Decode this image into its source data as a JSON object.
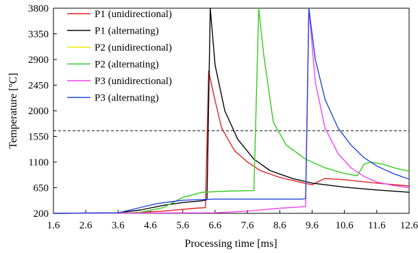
{
  "chart_data": {
    "type": "line",
    "xlabel": "Processing time [ms]",
    "ylabel": "Temperature [ºC]",
    "xlim": [
      1.6,
      12.6
    ],
    "ylim": [
      200,
      3800
    ],
    "xticks": [
      "1.6",
      "2.6",
      "3.6",
      "4.6",
      "5.6",
      "6.6",
      "7.6",
      "8.6",
      "9.6",
      "10.6",
      "11.6",
      "12.6"
    ],
    "yticks": [
      "200",
      "650",
      "1100",
      "1550",
      "2000",
      "2450",
      "2900",
      "3350",
      "3800"
    ],
    "grid": false,
    "legend_position": "top-left",
    "reference_line": {
      "y": 1650,
      "style": "dashed"
    },
    "series": [
      {
        "name": "P1 (unidirectional)",
        "color": "#e02020",
        "points": [
          [
            1.6,
            200
          ],
          [
            4.0,
            210
          ],
          [
            5.0,
            240
          ],
          [
            6.0,
            290
          ],
          [
            6.3,
            300
          ],
          [
            6.4,
            2700
          ],
          [
            6.55,
            2300
          ],
          [
            6.8,
            1700
          ],
          [
            7.2,
            1300
          ],
          [
            7.6,
            1100
          ],
          [
            8.0,
            950
          ],
          [
            8.6,
            830
          ],
          [
            9.2,
            750
          ],
          [
            9.6,
            700
          ],
          [
            9.8,
            760
          ],
          [
            10.0,
            810
          ],
          [
            10.6,
            790
          ],
          [
            11.6,
            730
          ],
          [
            12.6,
            680
          ]
        ]
      },
      {
        "name": "P1 (alternating)",
        "color": "#000000",
        "points": [
          [
            1.6,
            200
          ],
          [
            3.6,
            210
          ],
          [
            4.3,
            260
          ],
          [
            5.0,
            340
          ],
          [
            5.6,
            390
          ],
          [
            6.2,
            420
          ],
          [
            6.35,
            440
          ],
          [
            6.45,
            3800
          ],
          [
            6.6,
            2800
          ],
          [
            6.9,
            2000
          ],
          [
            7.3,
            1500
          ],
          [
            7.8,
            1150
          ],
          [
            8.3,
            950
          ],
          [
            9.0,
            810
          ],
          [
            9.6,
            730
          ],
          [
            10.6,
            660
          ],
          [
            11.6,
            610
          ],
          [
            12.6,
            570
          ]
        ]
      },
      {
        "name": "P2 (unidirectional)",
        "color": "#e8e800",
        "points": [
          [
            1.6,
            200
          ],
          [
            4.2,
            210
          ],
          [
            5.0,
            300
          ],
          [
            5.6,
            480
          ],
          [
            6.2,
            570
          ],
          [
            7.0,
            590
          ],
          [
            7.8,
            600
          ],
          [
            7.95,
            3800
          ],
          [
            8.1,
            3000
          ],
          [
            8.4,
            1800
          ],
          [
            8.8,
            1400
          ],
          [
            9.4,
            1150
          ],
          [
            10.0,
            1000
          ],
          [
            10.6,
            900
          ],
          [
            11.0,
            860
          ],
          [
            11.2,
            1060
          ],
          [
            11.4,
            1100
          ],
          [
            11.8,
            1060
          ],
          [
            12.2,
            990
          ],
          [
            12.6,
            940
          ]
        ]
      },
      {
        "name": "P2 (alternating)",
        "color": "#33cc33",
        "points": [
          [
            1.6,
            200
          ],
          [
            4.2,
            210
          ],
          [
            5.0,
            300
          ],
          [
            5.6,
            480
          ],
          [
            6.2,
            570
          ],
          [
            7.0,
            590
          ],
          [
            7.8,
            600
          ],
          [
            7.95,
            3800
          ],
          [
            8.1,
            3000
          ],
          [
            8.4,
            1800
          ],
          [
            8.8,
            1400
          ],
          [
            9.4,
            1150
          ],
          [
            10.0,
            1000
          ],
          [
            10.6,
            900
          ],
          [
            11.0,
            860
          ],
          [
            11.2,
            1060
          ],
          [
            11.4,
            1100
          ],
          [
            11.8,
            1060
          ],
          [
            12.2,
            990
          ],
          [
            12.6,
            940
          ]
        ]
      },
      {
        "name": "P3 (unidirectional)",
        "color": "#ee44ee",
        "points": [
          [
            1.6,
            200
          ],
          [
            6.6,
            210
          ],
          [
            7.6,
            240
          ],
          [
            8.6,
            290
          ],
          [
            9.2,
            310
          ],
          [
            9.4,
            320
          ],
          [
            9.5,
            3800
          ],
          [
            9.7,
            2500
          ],
          [
            10.0,
            1700
          ],
          [
            10.4,
            1250
          ],
          [
            10.8,
            1000
          ],
          [
            11.2,
            850
          ],
          [
            11.6,
            750
          ],
          [
            12.1,
            690
          ],
          [
            12.6,
            650
          ]
        ]
      },
      {
        "name": "P3 (alternating)",
        "color": "#2244dd",
        "points": [
          [
            1.6,
            200
          ],
          [
            3.6,
            210
          ],
          [
            4.2,
            290
          ],
          [
            4.8,
            370
          ],
          [
            5.6,
            430
          ],
          [
            6.6,
            450
          ],
          [
            8.0,
            450
          ],
          [
            9.3,
            450
          ],
          [
            9.4,
            460
          ],
          [
            9.5,
            3800
          ],
          [
            9.7,
            2900
          ],
          [
            10.0,
            2200
          ],
          [
            10.4,
            1700
          ],
          [
            10.8,
            1400
          ],
          [
            11.2,
            1180
          ],
          [
            11.6,
            1030
          ],
          [
            12.1,
            900
          ],
          [
            12.6,
            800
          ]
        ]
      }
    ]
  }
}
